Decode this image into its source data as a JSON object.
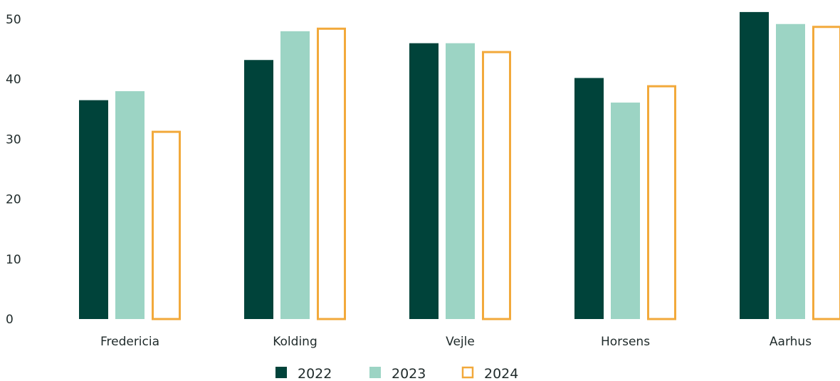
{
  "chart_data": {
    "type": "bar",
    "categories": [
      "Fredericia",
      "Kolding",
      "Vejle",
      "Horsens",
      "Aarhus"
    ],
    "series": [
      {
        "name": "2022",
        "values": [
          36.5,
          43.2,
          46.0,
          40.2,
          51.2
        ],
        "color": "#00433a",
        "style": "filled"
      },
      {
        "name": "2023",
        "values": [
          38.0,
          48.0,
          46.0,
          36.1,
          49.2
        ],
        "color": "#9cd4c4",
        "style": "filled"
      },
      {
        "name": "2024",
        "values": [
          31.4,
          48.6,
          44.7,
          39.0,
          48.9
        ],
        "color": "#f2a93b",
        "style": "outline"
      }
    ],
    "yticks": [
      "0",
      "10",
      "20",
      "30",
      "40",
      "50"
    ],
    "ylim": [
      0,
      51.2
    ],
    "grid": false,
    "legend_position": "bottom-center",
    "title": "",
    "xlabel": "",
    "ylabel": ""
  }
}
